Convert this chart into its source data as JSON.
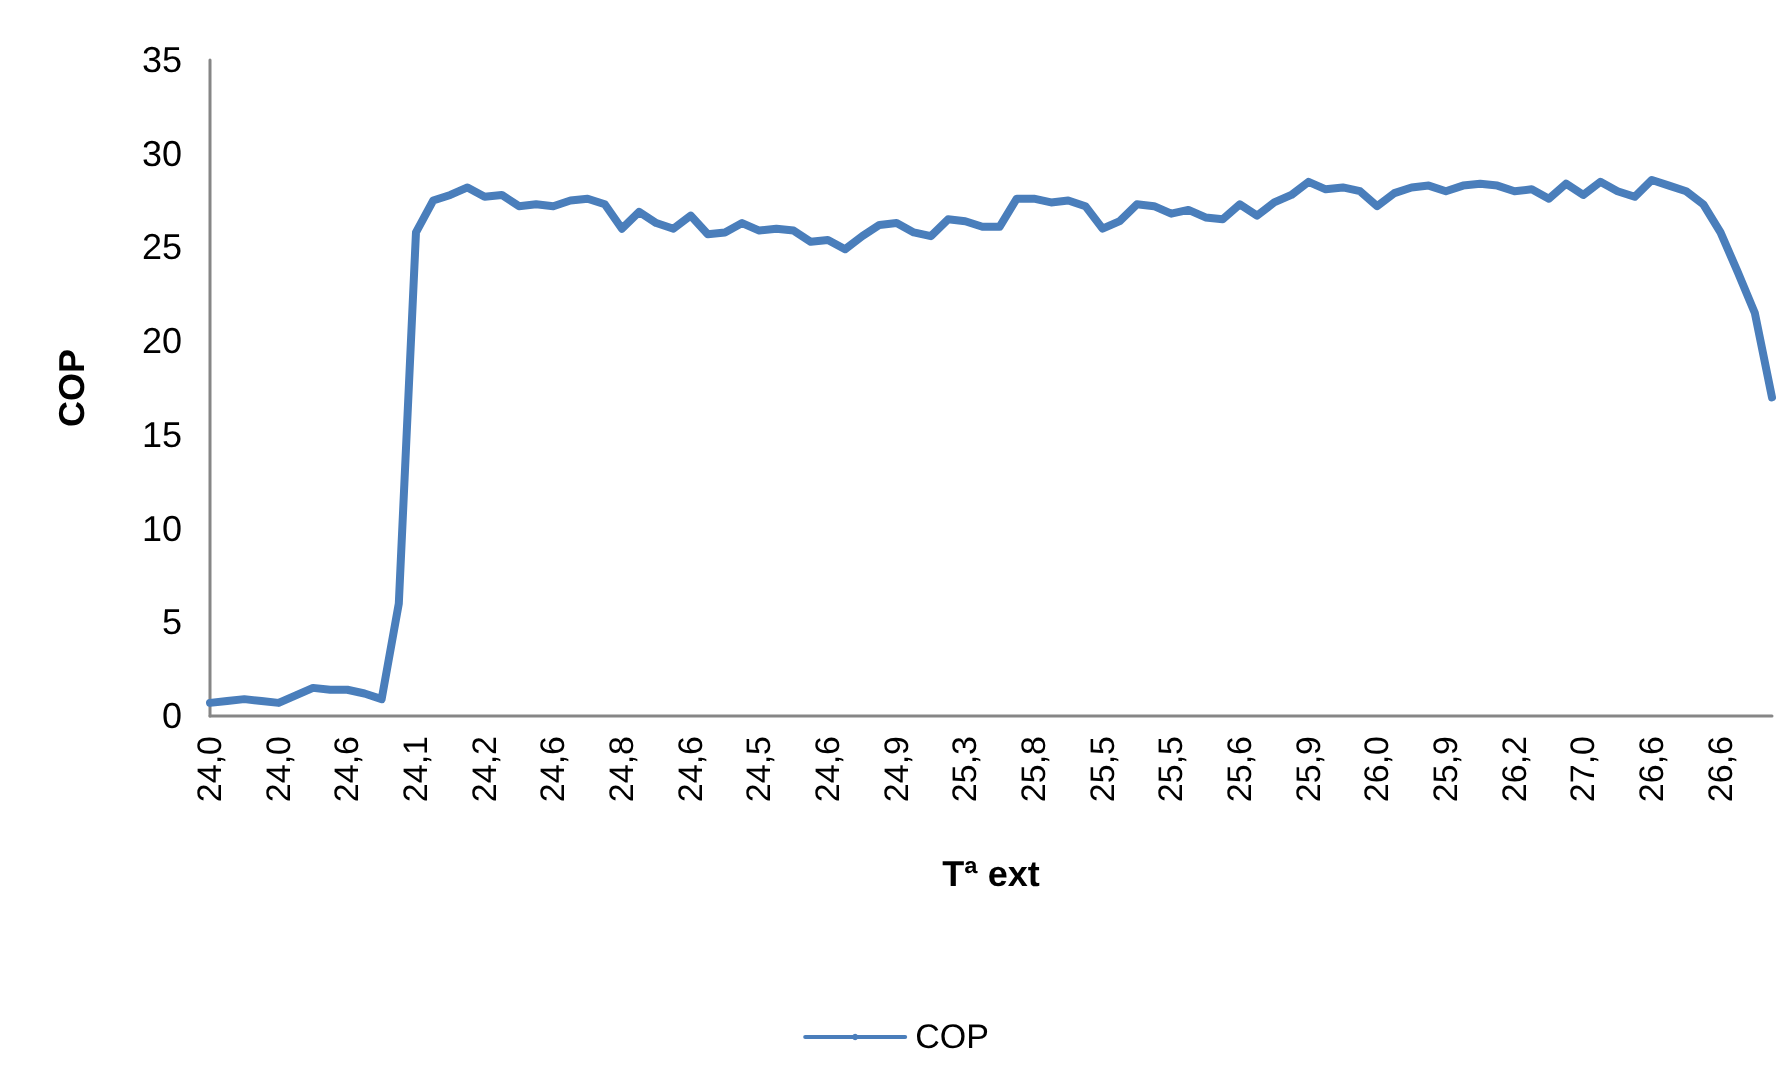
{
  "chart_data": {
    "type": "line",
    "xlabel": "Tª ext",
    "ylabel": "COP",
    "categories": [
      "24,0",
      null,
      null,
      null,
      "24,0",
      null,
      null,
      null,
      "24,6",
      null,
      null,
      null,
      "24,1",
      null,
      null,
      null,
      "24,2",
      null,
      null,
      null,
      "24,6",
      null,
      null,
      null,
      "24,8",
      null,
      null,
      null,
      "24,6",
      null,
      null,
      null,
      "24,5",
      null,
      null,
      null,
      "24,6",
      null,
      null,
      null,
      "24,9",
      null,
      null,
      null,
      "25,3",
      null,
      null,
      null,
      "25,8",
      null,
      null,
      null,
      "25,5",
      null,
      null,
      null,
      "25,5",
      null,
      null,
      null,
      "25,6",
      null,
      null,
      null,
      "25,9",
      null,
      null,
      null,
      "26,0",
      null,
      null,
      null,
      "25,9",
      null,
      null,
      null,
      "26,2",
      null,
      null,
      null,
      "27,0",
      null,
      null,
      null,
      "26,6",
      null,
      null,
      null,
      "26,6",
      null,
      null,
      null
    ],
    "series": [
      {
        "name": "COP",
        "color": "#4a7ebb",
        "values": [
          0.7,
          0.8,
          0.9,
          0.8,
          0.7,
          1.1,
          1.5,
          1.4,
          1.4,
          1.2,
          0.9,
          6.0,
          25.8,
          27.5,
          27.8,
          28.2,
          27.7,
          27.8,
          27.2,
          27.3,
          27.2,
          27.5,
          27.6,
          27.3,
          26.0,
          26.9,
          26.3,
          26.0,
          26.7,
          25.7,
          25.8,
          26.3,
          25.9,
          26.0,
          25.9,
          25.3,
          25.4,
          24.9,
          25.6,
          26.2,
          26.3,
          25.8,
          25.6,
          26.5,
          26.4,
          26.1,
          26.1,
          27.6,
          27.6,
          27.4,
          27.5,
          27.2,
          26.0,
          26.4,
          27.3,
          27.2,
          26.8,
          27.0,
          26.6,
          26.5,
          27.3,
          26.7,
          27.4,
          27.8,
          28.5,
          28.1,
          28.2,
          28.0,
          27.2,
          27.9,
          28.2,
          28.3,
          28.0,
          28.3,
          28.4,
          28.3,
          28.0,
          28.1,
          27.6,
          28.4,
          27.8,
          28.5,
          28.0,
          27.7,
          28.6,
          28.3,
          28.0,
          27.3,
          25.8,
          23.7,
          21.5,
          17.0
        ]
      }
    ],
    "ylim": [
      0,
      35
    ],
    "yticks": [
      0,
      5,
      10,
      15,
      20,
      25,
      30,
      35
    ],
    "legend": "bottom"
  }
}
